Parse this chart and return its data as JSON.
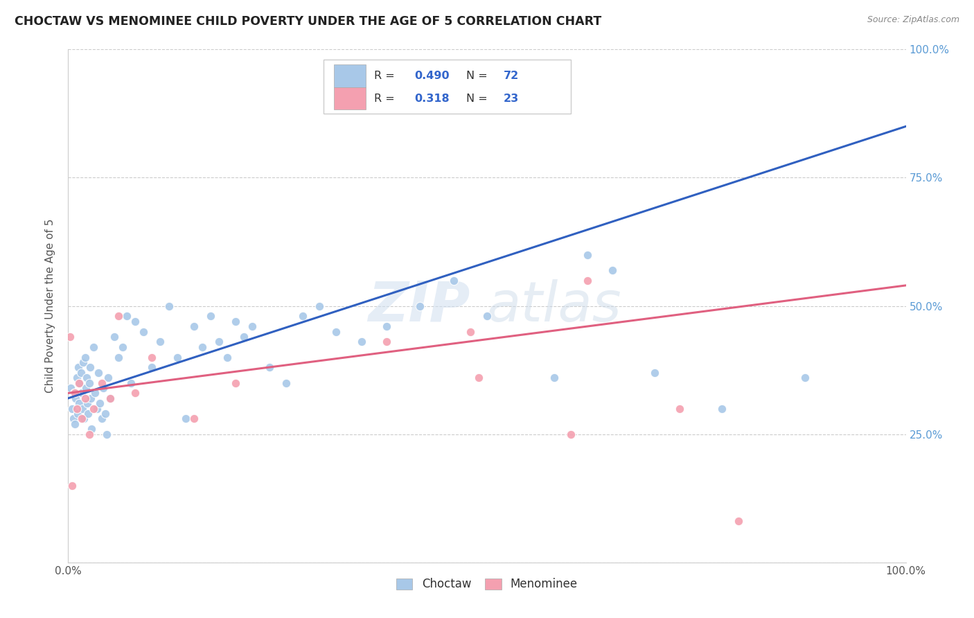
{
  "title": "CHOCTAW VS MENOMINEE CHILD POVERTY UNDER THE AGE OF 5 CORRELATION CHART",
  "source": "Source: ZipAtlas.com",
  "ylabel": "Child Poverty Under the Age of 5",
  "background_color": "#ffffff",
  "watermark_zip": "ZIP",
  "watermark_atlas": "atlas",
  "choctaw_color": "#a8c8e8",
  "menominee_color": "#f4a0b0",
  "trendline_choctaw_color": "#3060c0",
  "trendline_menominee_color": "#e06080",
  "R_choctaw": 0.49,
  "N_choctaw": 72,
  "R_menominee": 0.318,
  "N_menominee": 23,
  "legend_R_color": "#3366cc",
  "legend_N_color": "#3366cc",
  "ytick_color": "#5b9bd5",
  "xtick_color": "#555555",
  "grid_color": "#cccccc",
  "source_color": "#888888"
}
